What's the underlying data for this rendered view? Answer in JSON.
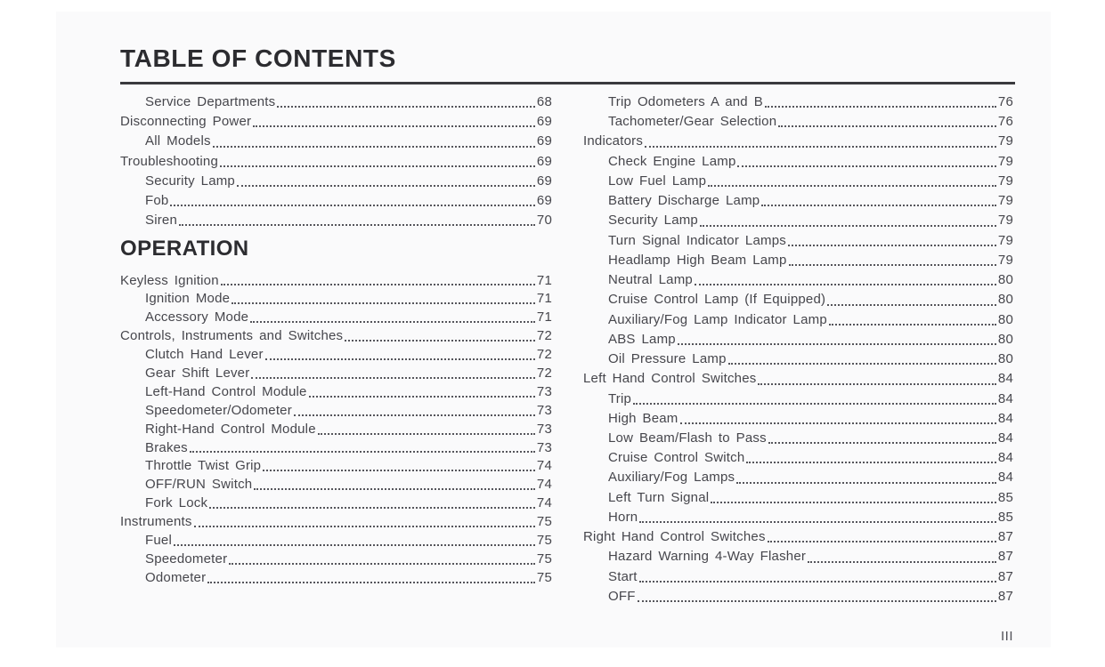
{
  "page": {
    "title": "TABLE OF CONTENTS",
    "folio": "III"
  },
  "colors": {
    "ink": "#46464c",
    "heading_ink": "#2c2c30",
    "rule": "#3a3a3e"
  },
  "left_column": {
    "entries_before_heading": [
      {
        "label": "Service Departments",
        "page": "68",
        "indent": true
      },
      {
        "label": "Disconnecting Power",
        "page": "69",
        "indent": false
      },
      {
        "label": "All Models",
        "page": "69",
        "indent": true
      },
      {
        "label": "Troubleshooting",
        "page": "69",
        "indent": false
      },
      {
        "label": "Security Lamp",
        "page": "69",
        "indent": true
      },
      {
        "label": "Fob",
        "page": "69",
        "indent": true
      },
      {
        "label": "Siren",
        "page": "70",
        "indent": true
      }
    ],
    "section_heading": "OPERATION",
    "entries_after_heading": [
      {
        "label": "Keyless Ignition",
        "page": "71",
        "indent": false
      },
      {
        "label": "Ignition Mode",
        "page": "71",
        "indent": true
      },
      {
        "label": "Accessory Mode",
        "page": "71",
        "indent": true
      },
      {
        "label": "Controls, Instruments and Switches",
        "page": "72",
        "indent": false
      },
      {
        "label": "Clutch Hand Lever",
        "page": "72",
        "indent": true
      },
      {
        "label": "Gear Shift Lever",
        "page": "72",
        "indent": true
      },
      {
        "label": "Left-Hand Control Module",
        "page": "73",
        "indent": true
      },
      {
        "label": "Speedometer/Odometer",
        "page": "73",
        "indent": true
      },
      {
        "label": "Right-Hand Control Module",
        "page": "73",
        "indent": true
      },
      {
        "label": "Brakes",
        "page": "73",
        "indent": true
      },
      {
        "label": "Throttle Twist Grip",
        "page": "74",
        "indent": true
      },
      {
        "label": "OFF/RUN Switch",
        "page": "74",
        "indent": true
      },
      {
        "label": "Fork Lock",
        "page": "74",
        "indent": true
      },
      {
        "label": "Instruments",
        "page": "75",
        "indent": false
      },
      {
        "label": "Fuel",
        "page": "75",
        "indent": true
      },
      {
        "label": "Speedometer",
        "page": "75",
        "indent": true
      },
      {
        "label": "Odometer",
        "page": "75",
        "indent": true
      }
    ]
  },
  "right_column": {
    "entries": [
      {
        "label": "Trip Odometers A and B",
        "page": "76",
        "indent": true
      },
      {
        "label": "Tachometer/Gear Selection",
        "page": "76",
        "indent": true
      },
      {
        "label": "Indicators",
        "page": "79",
        "indent": false
      },
      {
        "label": "Check Engine Lamp",
        "page": "79",
        "indent": true
      },
      {
        "label": "Low Fuel Lamp",
        "page": "79",
        "indent": true
      },
      {
        "label": "Battery Discharge Lamp",
        "page": "79",
        "indent": true
      },
      {
        "label": "Security Lamp",
        "page": "79",
        "indent": true
      },
      {
        "label": "Turn Signal Indicator Lamps",
        "page": "79",
        "indent": true
      },
      {
        "label": "Headlamp High Beam Lamp",
        "page": "79",
        "indent": true
      },
      {
        "label": "Neutral Lamp",
        "page": "80",
        "indent": true
      },
      {
        "label": "Cruise Control Lamp (If Equipped)",
        "page": "80",
        "indent": true
      },
      {
        "label": "Auxiliary/Fog Lamp Indicator Lamp",
        "page": "80",
        "indent": true
      },
      {
        "label": "ABS Lamp",
        "page": "80",
        "indent": true
      },
      {
        "label": "Oil Pressure Lamp",
        "page": "80",
        "indent": true
      },
      {
        "label": "Left Hand Control Switches",
        "page": "84",
        "indent": false
      },
      {
        "label": "Trip",
        "page": "84",
        "indent": true
      },
      {
        "label": "High Beam",
        "page": "84",
        "indent": true
      },
      {
        "label": "Low Beam/Flash to Pass",
        "page": "84",
        "indent": true
      },
      {
        "label": "Cruise Control Switch",
        "page": "84",
        "indent": true
      },
      {
        "label": "Auxiliary/Fog Lamps",
        "page": "84",
        "indent": true
      },
      {
        "label": "Left Turn Signal",
        "page": "85",
        "indent": true
      },
      {
        "label": "Horn",
        "page": "85",
        "indent": true
      },
      {
        "label": "Right Hand Control Switches",
        "page": "87",
        "indent": false
      },
      {
        "label": "Hazard Warning 4-Way Flasher",
        "page": "87",
        "indent": true
      },
      {
        "label": "Start",
        "page": "87",
        "indent": true
      },
      {
        "label": "OFF",
        "page": "87",
        "indent": true
      }
    ]
  }
}
